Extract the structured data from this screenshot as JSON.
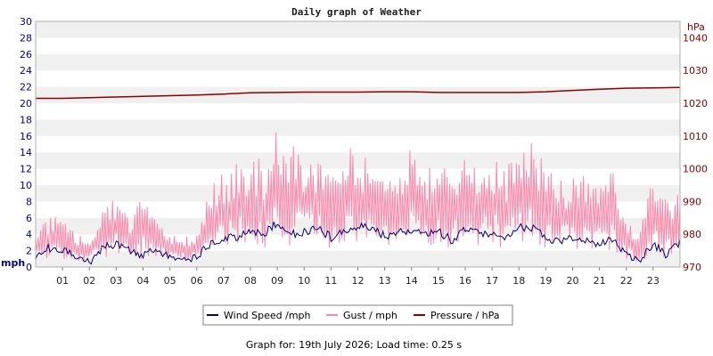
{
  "chart_data": {
    "type": "line",
    "title": "Daily graph of Weather",
    "left_unit": "mph",
    "right_unit": "hPa",
    "left_axis": {
      "min": 0,
      "max": 30,
      "ticks": [
        0,
        2,
        4,
        6,
        8,
        10,
        12,
        14,
        16,
        18,
        20,
        22,
        24,
        26,
        28,
        30
      ]
    },
    "right_axis": {
      "min": 970,
      "max": 1045,
      "ticks": [
        970,
        980,
        990,
        1000,
        1010,
        1020,
        1030,
        1040
      ]
    },
    "x_ticks": [
      "01",
      "02",
      "03",
      "04",
      "05",
      "06",
      "07",
      "08",
      "09",
      "10",
      "11",
      "12",
      "13",
      "14",
      "15",
      "16",
      "17",
      "18",
      "19",
      "20",
      "21",
      "22",
      "23"
    ],
    "x_range": [
      0,
      24
    ],
    "grid": "horizontal bands",
    "legend_position": "bottom",
    "series": [
      {
        "name": "Wind Speed /mph",
        "color": "#000080",
        "axis": "left",
        "x": [
          0,
          0.5,
          1,
          1.5,
          2,
          2.5,
          3,
          3.5,
          4,
          4.5,
          5,
          5.5,
          6,
          6.5,
          7,
          7.5,
          8,
          8.5,
          9,
          9.5,
          10,
          10.5,
          11,
          11.5,
          12,
          12.5,
          13,
          13.5,
          14,
          14.5,
          15,
          15.5,
          16,
          16.5,
          17,
          17.5,
          18,
          18.5,
          19,
          19.5,
          20,
          20.5,
          21,
          21.5,
          22,
          22.5,
          23,
          23.5,
          24
        ],
        "y": [
          1.5,
          2.3,
          2.2,
          1.2,
          0.6,
          2.5,
          2.7,
          2.0,
          1.5,
          2.2,
          1.3,
          1.0,
          1.2,
          2.8,
          3.5,
          3.7,
          4.5,
          4.0,
          5.5,
          4.0,
          4.3,
          4.8,
          3.6,
          4.5,
          5.0,
          4.8,
          3.8,
          4.2,
          4.6,
          3.8,
          4.4,
          3.2,
          4.7,
          4.0,
          4.2,
          3.7,
          4.9,
          4.8,
          3.7,
          3.0,
          3.6,
          3.2,
          2.8,
          3.3,
          1.5,
          0.8,
          2.8,
          1.5,
          3.0
        ]
      },
      {
        "name": "Gust / mph",
        "color": "#ff88aa",
        "axis": "left",
        "x": [
          0,
          0.5,
          1,
          1.5,
          2,
          2.5,
          3,
          3.5,
          4,
          4.5,
          5,
          5.5,
          6,
          6.5,
          7,
          7.5,
          8,
          8.5,
          9,
          9.5,
          10,
          10.5,
          11,
          11.5,
          12,
          12.5,
          13,
          13.5,
          14,
          14.5,
          15,
          15.5,
          16,
          16.5,
          17,
          17.5,
          18,
          18.5,
          19,
          19.5,
          20,
          20.5,
          21,
          21.5,
          22,
          22.5,
          23,
          23.5,
          24
        ],
        "y_low": [
          0.8,
          1.0,
          1.0,
          0.5,
          0.5,
          1.0,
          1.5,
          1.2,
          0.8,
          1.0,
          1.0,
          0.8,
          1.0,
          1.5,
          2.0,
          2.2,
          2.5,
          2.3,
          3.0,
          2.5,
          2.5,
          2.8,
          2.2,
          2.5,
          2.8,
          2.6,
          2.5,
          2.4,
          2.8,
          2.2,
          2.5,
          2.0,
          2.8,
          2.3,
          2.6,
          2.2,
          3.0,
          2.8,
          2.2,
          1.8,
          2.2,
          2.0,
          1.8,
          2.0,
          0.8,
          0.5,
          1.5,
          1.0,
          1.8
        ],
        "y_high": [
          5.5,
          6.5,
          6.0,
          4.0,
          3.5,
          8.0,
          9.0,
          6.0,
          9.0,
          5.5,
          4.0,
          3.5,
          4.5,
          10.0,
          12.0,
          13.0,
          14.0,
          13.0,
          17.0,
          15.0,
          14.5,
          13.5,
          12.0,
          15.0,
          14.0,
          13.0,
          12.0,
          13.5,
          15.0,
          12.0,
          14.0,
          11.0,
          16.0,
          13.0,
          14.0,
          12.0,
          15.0,
          16.0,
          13.0,
          10.5,
          12.0,
          11.0,
          10.5,
          12.0,
          6.0,
          5.0,
          11.0,
          8.0,
          10.0
        ]
      },
      {
        "name": "Pressure / hPa",
        "color": "#8b0000",
        "axis": "right",
        "x": [
          0,
          1,
          2,
          3,
          4,
          5,
          6,
          7,
          8,
          9,
          10,
          11,
          12,
          13,
          14,
          15,
          16,
          17,
          18,
          19,
          20,
          21,
          22,
          23,
          24
        ],
        "y": [
          1021.5,
          1021.5,
          1021.7,
          1021.9,
          1022.1,
          1022.3,
          1022.5,
          1022.8,
          1023.2,
          1023.3,
          1023.4,
          1023.4,
          1023.4,
          1023.5,
          1023.5,
          1023.3,
          1023.3,
          1023.3,
          1023.3,
          1023.5,
          1023.9,
          1024.3,
          1024.6,
          1024.7,
          1024.8
        ]
      }
    ]
  },
  "legend": {
    "items": [
      {
        "label": "Wind Speed /mph",
        "color": "#000080"
      },
      {
        "label": "Gust / mph",
        "color": "#ff88aa"
      },
      {
        "label": "Pressure / hPa",
        "color": "#8b0000"
      }
    ]
  },
  "footer": {
    "text": "Graph for: 19th July 2026; Load time: 0.25 s"
  }
}
